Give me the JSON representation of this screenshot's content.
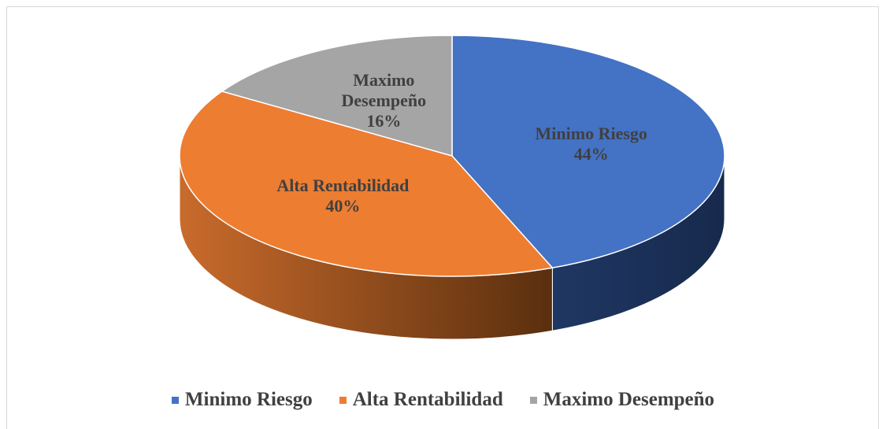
{
  "chart_data": {
    "type": "pie",
    "style": "3d",
    "categories": [
      "Minimo Riesgo",
      "Alta Rentabilidad",
      "Maximo Desempeño"
    ],
    "values": [
      44,
      40,
      16
    ],
    "value_labels": [
      "44%",
      "40%",
      "16%"
    ],
    "colors": [
      "#4472c4",
      "#ed7d31",
      "#a5a5a5"
    ],
    "side_colors": [
      [
        "#1f3763",
        "#172a4d"
      ],
      [
        "#c96b2c",
        "#5a2f0e"
      ],
      [
        "#7a7a7a",
        "#5a5a5a"
      ]
    ],
    "legend": "bottom"
  }
}
